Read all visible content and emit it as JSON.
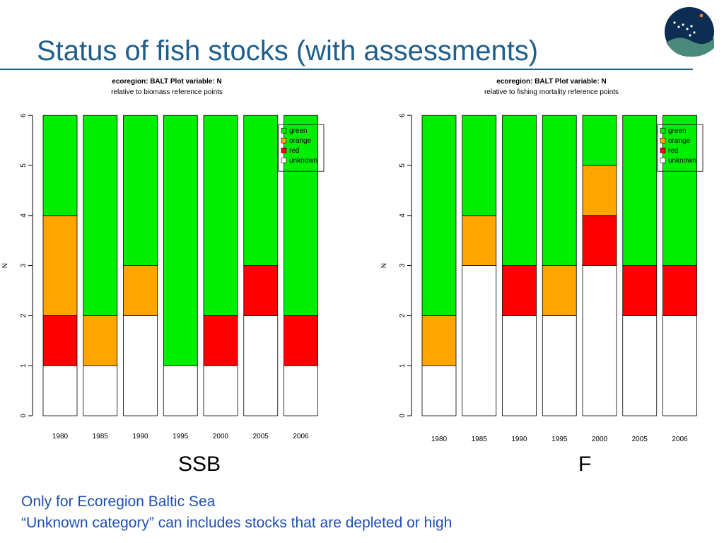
{
  "slide": {
    "title": "Status of fish stocks (with assessments)",
    "notes": [
      "Only for Ecoregion Baltic Sea",
      "“Unknown category” can includes stocks that are depleted or high"
    ]
  },
  "colors": {
    "title": "#1f5f8b",
    "note": "#1f4fb0",
    "green": "#00ee00",
    "orange": "#ffa500",
    "red": "#ff0000",
    "unknown": "#ffffff"
  },
  "logo": {
    "icon": "ices-logo-icon"
  },
  "chart_data": [
    {
      "type": "bar",
      "stacked": true,
      "caption": "SSB",
      "title": "ecoregion: BALT   Plot variable:  N",
      "subtitle": "relative to biomass reference points",
      "xlabel": "",
      "ylabel": "N",
      "ylim": [
        0,
        6
      ],
      "yticks": [
        "0",
        "1",
        "2",
        "3",
        "4",
        "5",
        "6"
      ],
      "categories": [
        "1980",
        "1985",
        "1990",
        "1995",
        "2000",
        "2005",
        "2006"
      ],
      "series": [
        {
          "name": "unknown",
          "color": "#ffffff",
          "values": [
            1,
            1,
            2,
            1,
            1,
            2,
            1
          ]
        },
        {
          "name": "red",
          "color": "#ff0000",
          "values": [
            1,
            0,
            0,
            0,
            1,
            1,
            1
          ]
        },
        {
          "name": "orange",
          "color": "#ffa500",
          "values": [
            2,
            1,
            1,
            0,
            0,
            0,
            0
          ]
        },
        {
          "name": "green",
          "color": "#00ee00",
          "values": [
            2,
            4,
            3,
            5,
            4,
            3,
            4
          ]
        }
      ],
      "legend": {
        "position": "top-right",
        "items": [
          {
            "label": "green",
            "color": "#00ee00"
          },
          {
            "label": "orange",
            "color": "#ffa500"
          },
          {
            "label": "red",
            "color": "#ff0000"
          },
          {
            "label": "unknown",
            "color": "#ffffff"
          }
        ]
      }
    },
    {
      "type": "bar",
      "stacked": true,
      "caption": "F",
      "title": "ecoregion: BALT   Plot variable:  N",
      "subtitle": "relative to fishing mortality reference points",
      "xlabel": "",
      "ylabel": "N",
      "ylim": [
        0,
        6
      ],
      "yticks": [
        "0",
        "1",
        "2",
        "3",
        "4",
        "5",
        "6"
      ],
      "categories": [
        "1980",
        "1985",
        "1990",
        "1995",
        "2000",
        "2005",
        "2006"
      ],
      "series": [
        {
          "name": "unknown",
          "color": "#ffffff",
          "values": [
            1,
            3,
            2,
            2,
            3,
            2,
            2
          ]
        },
        {
          "name": "red",
          "color": "#ff0000",
          "values": [
            0,
            0,
            1,
            0,
            1,
            1,
            1
          ]
        },
        {
          "name": "orange",
          "color": "#ffa500",
          "values": [
            1,
            1,
            0,
            1,
            1,
            0,
            0
          ]
        },
        {
          "name": "green",
          "color": "#00ee00",
          "values": [
            4,
            2,
            3,
            3,
            1,
            3,
            3
          ]
        }
      ],
      "legend": {
        "position": "top-right",
        "items": [
          {
            "label": "green",
            "color": "#00ee00"
          },
          {
            "label": "orange",
            "color": "#ffa500"
          },
          {
            "label": "red",
            "color": "#ff0000"
          },
          {
            "label": "unknown",
            "color": "#ffffff"
          }
        ]
      }
    }
  ]
}
